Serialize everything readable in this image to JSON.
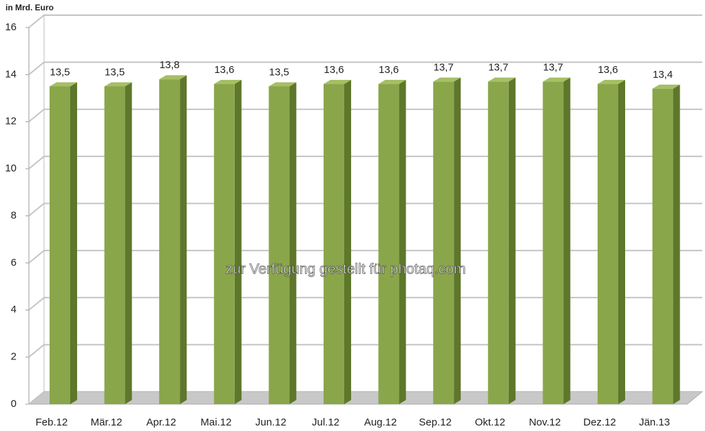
{
  "chart_data": {
    "type": "bar",
    "y_axis_label": "in Mrd. Euro",
    "categories": [
      "Feb.12",
      "Mär.12",
      "Apr.12",
      "Mai.12",
      "Jun.12",
      "Jul.12",
      "Aug.12",
      "Sep.12",
      "Okt.12",
      "Nov.12",
      "Dez.12",
      "Jän.13"
    ],
    "values": [
      13.5,
      13.5,
      13.8,
      13.6,
      13.5,
      13.6,
      13.6,
      13.7,
      13.7,
      13.7,
      13.6,
      13.4
    ],
    "value_labels": [
      "13,5",
      "13,5",
      "13,8",
      "13,6",
      "13,5",
      "13,6",
      "13,6",
      "13,7",
      "13,7",
      "13,7",
      "13,6",
      "13,4"
    ],
    "color": "#8aa64a",
    "ylim": [
      0,
      16
    ],
    "yticks": [
      0,
      2,
      4,
      6,
      8,
      10,
      12,
      14,
      16
    ],
    "grid": true,
    "annotation": "zur Verfügung gestellt für photaq.com"
  }
}
